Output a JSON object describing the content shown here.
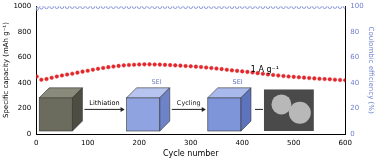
{
  "chart_data": {
    "type": "scatter",
    "xlabel": "Cycle number",
    "ylabel": "Specific capacity (mAh g⁻¹)",
    "y2label": "Coulombic efficiency (%)",
    "annotations": [
      "1 A g⁻¹",
      "Lithiation",
      "Cycling",
      "SEI",
      "SEI"
    ],
    "x": [
      1,
      10,
      20,
      30,
      40,
      50,
      60,
      70,
      80,
      90,
      100,
      110,
      120,
      130,
      140,
      150,
      160,
      170,
      180,
      190,
      200,
      210,
      220,
      230,
      240,
      250,
      260,
      270,
      280,
      290,
      300,
      310,
      320,
      330,
      340,
      350,
      360,
      370,
      380,
      390,
      400,
      410,
      420,
      430,
      440,
      450,
      460,
      470,
      480,
      490,
      500,
      510,
      520,
      530,
      540,
      550,
      560,
      570,
      580,
      590,
      600
    ],
    "series": [
      {
        "name": "Specific capacity",
        "color": "#e3262b",
        "marker": "circle",
        "axis": "y",
        "values": [
          450,
          425,
          430,
          440,
          450,
          458,
          465,
          472,
          480,
          488,
          495,
          503,
          510,
          517,
          523,
          528,
          533,
          537,
          540,
          542,
          544,
          545,
          545,
          544,
          543,
          541,
          539,
          537,
          535,
          532,
          530,
          527,
          524,
          520,
          516,
          512,
          508,
          503,
          498,
          494,
          490,
          486,
          481,
          476,
          471,
          466,
          462,
          458,
          454,
          450,
          447,
          444,
          441,
          438,
          435,
          432,
          430,
          428,
          425,
          423,
          421
        ]
      },
      {
        "name": "Coulombic efficiency",
        "color": "#6f80cf",
        "marker": "circle",
        "axis": "y2",
        "values": [
          98.0,
          99.2,
          99.5,
          99.6,
          99.6,
          99.6,
          99.6,
          99.7,
          99.6,
          99.6,
          99.7,
          99.6,
          99.6,
          99.7,
          99.6,
          99.6,
          99.7,
          99.6,
          99.6,
          99.7,
          99.6,
          99.6,
          99.7,
          99.6,
          99.6,
          99.7,
          99.6,
          99.6,
          99.7,
          99.6,
          99.6,
          99.7,
          99.6,
          99.6,
          99.7,
          99.6,
          99.6,
          99.7,
          99.6,
          99.6,
          99.7,
          99.6,
          99.6,
          99.7,
          99.6,
          99.6,
          99.7,
          99.6,
          99.6,
          99.7,
          99.6,
          99.6,
          99.7,
          99.6,
          99.6,
          99.7,
          99.6,
          99.6,
          99.7,
          99.6,
          99.6
        ]
      }
    ],
    "xlim": [
      0,
      600
    ],
    "xticks": [
      0,
      100,
      200,
      300,
      400,
      500,
      600
    ],
    "ylim": [
      0,
      1000
    ],
    "yticks": [
      0,
      200,
      400,
      600,
      800,
      1000
    ],
    "y2lim": [
      0,
      100
    ],
    "y2ticks": [
      0,
      20,
      40,
      60,
      80,
      100
    ],
    "grid": false
  }
}
